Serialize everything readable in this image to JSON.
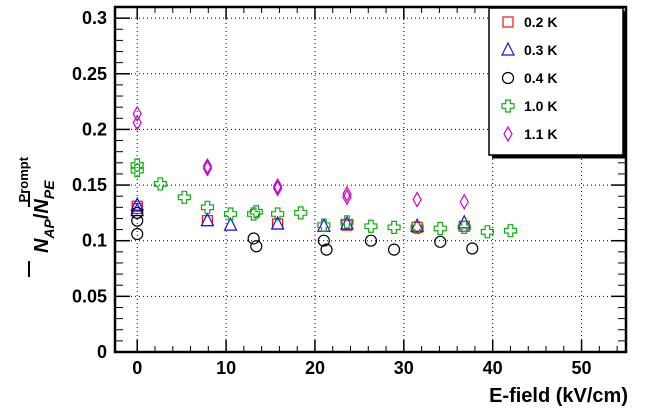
{
  "chart_data": {
    "type": "scatter",
    "xlabel": "E-field (kV/cm)",
    "ylabel": {
      "base": "N",
      "numerator_sub": "AP",
      "slash": "/",
      "denominator_sub": "PE",
      "sup": "Prompt"
    },
    "xlim": [
      -2.5,
      55
    ],
    "ylim": [
      0,
      0.31
    ],
    "x_ticks": [
      0,
      10,
      20,
      30,
      40,
      50
    ],
    "y_ticks": [
      0,
      0.05,
      0.1,
      0.15,
      0.2,
      0.25,
      0.3
    ],
    "x_tick_labels": [
      "0",
      "10",
      "20",
      "30",
      "40",
      "50"
    ],
    "y_tick_labels": [
      "0",
      "0.05",
      "0.1",
      "0.15",
      "0.2",
      "0.25",
      "0.3"
    ],
    "grid": true,
    "legend_position": "top-right",
    "series": [
      {
        "name": "0.2 K",
        "marker": "square",
        "color": "#ee1111",
        "points": [
          [
            0,
            0.131
          ],
          [
            0,
            0.129
          ],
          [
            7.9,
            0.118
          ],
          [
            15.8,
            0.115
          ],
          [
            23.6,
            0.114
          ],
          [
            31.5,
            0.112
          ],
          [
            36.8,
            0.113
          ]
        ]
      },
      {
        "name": "0.3 K",
        "marker": "triangle",
        "color": "#1111ee",
        "points": [
          [
            0,
            0.132
          ],
          [
            0,
            0.127
          ],
          [
            7.9,
            0.118
          ],
          [
            10.5,
            0.114
          ],
          [
            15.8,
            0.115
          ],
          [
            21.0,
            0.113
          ],
          [
            23.6,
            0.115
          ],
          [
            31.5,
            0.113
          ],
          [
            36.8,
            0.116
          ]
        ]
      },
      {
        "name": "0.4 K",
        "marker": "circle",
        "color": "#000000",
        "points": [
          [
            0,
            0.125
          ],
          [
            0,
            0.118
          ],
          [
            0,
            0.106
          ],
          [
            13.1,
            0.102
          ],
          [
            13.4,
            0.095
          ],
          [
            21.0,
            0.1
          ],
          [
            21.3,
            0.092
          ],
          [
            26.3,
            0.1
          ],
          [
            28.9,
            0.092
          ],
          [
            34.1,
            0.099
          ],
          [
            37.7,
            0.093
          ]
        ]
      },
      {
        "name": "1.0 K",
        "marker": "cross",
        "color": "#11aa11",
        "points": [
          [
            0,
            0.168
          ],
          [
            0,
            0.163
          ],
          [
            2.6,
            0.151
          ],
          [
            5.3,
            0.139
          ],
          [
            7.9,
            0.13
          ],
          [
            10.5,
            0.124
          ],
          [
            13.1,
            0.124
          ],
          [
            13.4,
            0.126
          ],
          [
            15.8,
            0.124
          ],
          [
            18.4,
            0.125
          ],
          [
            21.0,
            0.114
          ],
          [
            23.6,
            0.117
          ],
          [
            26.3,
            0.113
          ],
          [
            28.9,
            0.112
          ],
          [
            31.5,
            0.112
          ],
          [
            34.1,
            0.111
          ],
          [
            36.8,
            0.112
          ],
          [
            39.4,
            0.108
          ],
          [
            42.0,
            0.109
          ]
        ]
      },
      {
        "name": "1.1 K",
        "marker": "diamond",
        "color": "#cc00cc",
        "points": [
          [
            0,
            0.214
          ],
          [
            0,
            0.206
          ],
          [
            7.9,
            0.167
          ],
          [
            7.9,
            0.165
          ],
          [
            15.8,
            0.149
          ],
          [
            15.8,
            0.147
          ],
          [
            23.6,
            0.142
          ],
          [
            23.6,
            0.139
          ],
          [
            31.5,
            0.137
          ],
          [
            36.8,
            0.135
          ]
        ]
      }
    ]
  }
}
